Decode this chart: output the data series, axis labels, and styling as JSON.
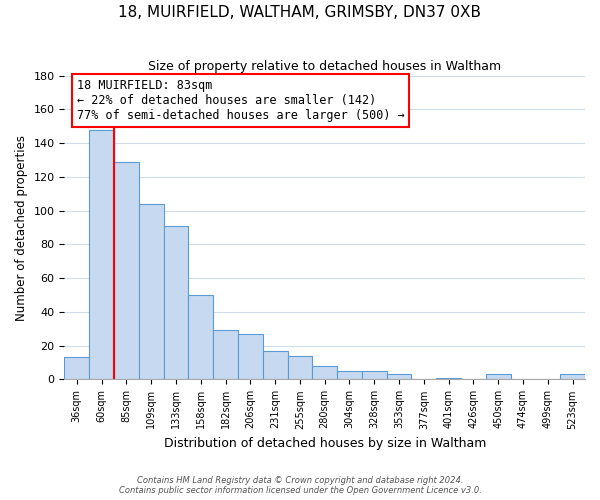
{
  "title": "18, MUIRFIELD, WALTHAM, GRIMSBY, DN37 0XB",
  "subtitle": "Size of property relative to detached houses in Waltham",
  "xlabel": "Distribution of detached houses by size in Waltham",
  "ylabel": "Number of detached properties",
  "bar_labels": [
    "36sqm",
    "60sqm",
    "85sqm",
    "109sqm",
    "133sqm",
    "158sqm",
    "182sqm",
    "206sqm",
    "231sqm",
    "255sqm",
    "280sqm",
    "304sqm",
    "328sqm",
    "353sqm",
    "377sqm",
    "401sqm",
    "426sqm",
    "450sqm",
    "474sqm",
    "499sqm",
    "523sqm"
  ],
  "bar_values": [
    13,
    148,
    129,
    104,
    91,
    50,
    29,
    27,
    17,
    14,
    8,
    5,
    5,
    3,
    0,
    1,
    0,
    3,
    0,
    0,
    3
  ],
  "bar_color": "#c6d9f0",
  "bar_edge_color": "#5b9bd5",
  "highlight_bar_index": 1,
  "highlight_color": "#ff0000",
  "ylim": [
    0,
    180
  ],
  "yticks": [
    0,
    20,
    40,
    60,
    80,
    100,
    120,
    140,
    160,
    180
  ],
  "annotation_title": "18 MUIRFIELD: 83sqm",
  "annotation_line1": "← 22% of detached houses are smaller (142)",
  "annotation_line2": "77% of semi-detached houses are larger (500) →",
  "annotation_box_color": "#ffffff",
  "annotation_box_edge": "#ff0000",
  "footer_line1": "Contains HM Land Registry data © Crown copyright and database right 2024.",
  "footer_line2": "Contains public sector information licensed under the Open Government Licence v3.0.",
  "bg_color": "#ffffff",
  "grid_color": "#d0dce8"
}
